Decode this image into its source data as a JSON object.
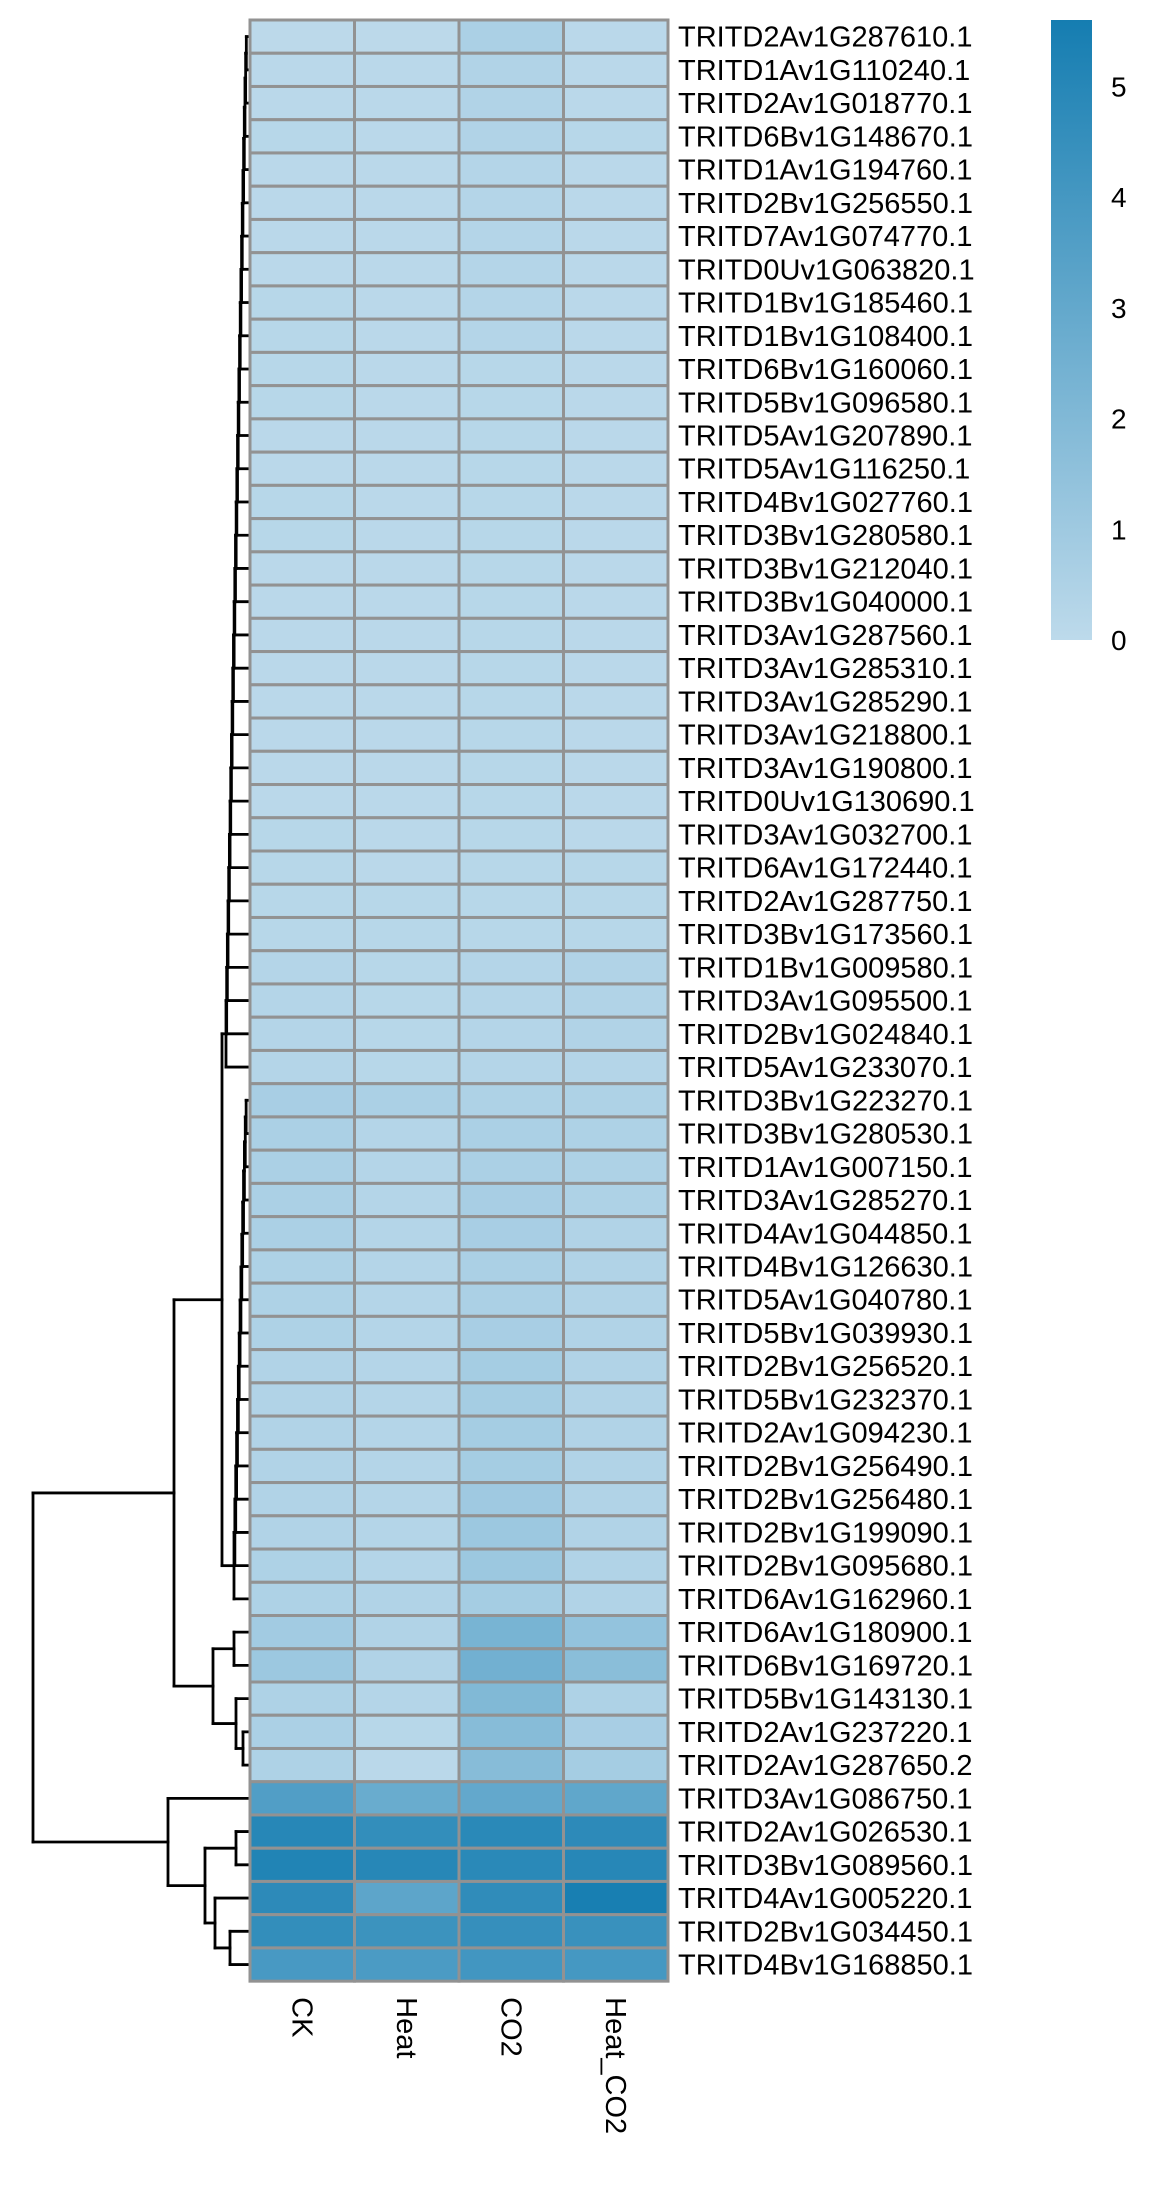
{
  "chart_data": {
    "type": "heatmap",
    "title": "",
    "columns": [
      "CK",
      "Heat",
      "CO2",
      "Heat_CO2"
    ],
    "rows": [
      "TRITD2Av1G287610.1",
      "TRITD1Av1G110240.1",
      "TRITD2Av1G018770.1",
      "TRITD6Bv1G148670.1",
      "TRITD1Av1G194760.1",
      "TRITD2Bv1G256550.1",
      "TRITD7Av1G074770.1",
      "TRITD0Uv1G063820.1",
      "TRITD1Bv1G185460.1",
      "TRITD1Bv1G108400.1",
      "TRITD6Bv1G160060.1",
      "TRITD5Bv1G096580.1",
      "TRITD5Av1G207890.1",
      "TRITD5Av1G116250.1",
      "TRITD4Bv1G027760.1",
      "TRITD3Bv1G280580.1",
      "TRITD3Bv1G212040.1",
      "TRITD3Bv1G040000.1",
      "TRITD3Av1G287560.1",
      "TRITD3Av1G285310.1",
      "TRITD3Av1G285290.1",
      "TRITD3Av1G218800.1",
      "TRITD3Av1G190800.1",
      "TRITD0Uv1G130690.1",
      "TRITD3Av1G032700.1",
      "TRITD6Av1G172440.1",
      "TRITD2Av1G287750.1",
      "TRITD3Bv1G173560.1",
      "TRITD1Bv1G009580.1",
      "TRITD3Av1G095500.1",
      "TRITD2Bv1G024840.1",
      "TRITD5Av1G233070.1",
      "TRITD3Bv1G223270.1",
      "TRITD3Bv1G280530.1",
      "TRITD1Av1G007150.1",
      "TRITD3Av1G285270.1",
      "TRITD4Av1G044850.1",
      "TRITD4Bv1G126630.1",
      "TRITD5Av1G040780.1",
      "TRITD5Bv1G039930.1",
      "TRITD2Bv1G256520.1",
      "TRITD5Bv1G232370.1",
      "TRITD2Av1G094230.1",
      "TRITD2Bv1G256490.1",
      "TRITD2Bv1G256480.1",
      "TRITD2Bv1G199090.1",
      "TRITD2Bv1G095680.1",
      "TRITD6Av1G162960.1",
      "TRITD6Av1G180900.1",
      "TRITD6Bv1G169720.1",
      "TRITD5Bv1G143130.1",
      "TRITD2Av1G237220.1",
      "TRITD2Av1G287650.2",
      "TRITD3Av1G086750.1",
      "TRITD2Av1G026530.1",
      "TRITD3Bv1G089560.1",
      "TRITD4Av1G005220.1",
      "TRITD2Bv1G034450.1",
      "TRITD4Bv1G168850.1"
    ],
    "values": [
      [
        0.05,
        0.05,
        0.6,
        0.1
      ],
      [
        0.1,
        0.1,
        0.4,
        0.1
      ],
      [
        0.1,
        0.1,
        0.4,
        0.1
      ],
      [
        0.2,
        0.1,
        0.4,
        0.2
      ],
      [
        0.1,
        0.1,
        0.3,
        0.1
      ],
      [
        0.1,
        0.1,
        0.3,
        0.1
      ],
      [
        0.1,
        0.1,
        0.3,
        0.1
      ],
      [
        0.1,
        0.1,
        0.3,
        0.1
      ],
      [
        0.2,
        0.1,
        0.3,
        0.1
      ],
      [
        0.2,
        0.1,
        0.3,
        0.1
      ],
      [
        0.2,
        0.1,
        0.2,
        0.1
      ],
      [
        0.2,
        0.1,
        0.2,
        0.1
      ],
      [
        0.1,
        0.1,
        0.2,
        0.1
      ],
      [
        0.1,
        0.1,
        0.2,
        0.1
      ],
      [
        0.2,
        0.1,
        0.2,
        0.1
      ],
      [
        0.2,
        0.1,
        0.2,
        0.1
      ],
      [
        0.1,
        0.1,
        0.2,
        0.1
      ],
      [
        0.1,
        0.1,
        0.2,
        0.1
      ],
      [
        0.1,
        0.1,
        0.2,
        0.1
      ],
      [
        0.1,
        0.1,
        0.2,
        0.1
      ],
      [
        0.1,
        0.1,
        0.2,
        0.1
      ],
      [
        0.1,
        0.1,
        0.2,
        0.1
      ],
      [
        0.1,
        0.1,
        0.2,
        0.1
      ],
      [
        0.1,
        0.1,
        0.2,
        0.1
      ],
      [
        0.2,
        0.1,
        0.2,
        0.1
      ],
      [
        0.2,
        0.1,
        0.2,
        0.2
      ],
      [
        0.2,
        0.2,
        0.2,
        0.2
      ],
      [
        0.2,
        0.2,
        0.2,
        0.2
      ],
      [
        0.3,
        0.2,
        0.3,
        0.4
      ],
      [
        0.3,
        0.2,
        0.3,
        0.4
      ],
      [
        0.3,
        0.2,
        0.3,
        0.4
      ],
      [
        0.3,
        0.2,
        0.3,
        0.3
      ],
      [
        0.7,
        0.6,
        0.5,
        0.5
      ],
      [
        0.6,
        0.3,
        0.6,
        0.5
      ],
      [
        0.6,
        0.3,
        0.6,
        0.5
      ],
      [
        0.6,
        0.3,
        0.7,
        0.5
      ],
      [
        0.6,
        0.3,
        0.7,
        0.4
      ],
      [
        0.5,
        0.3,
        0.6,
        0.4
      ],
      [
        0.5,
        0.3,
        0.6,
        0.4
      ],
      [
        0.5,
        0.3,
        0.7,
        0.4
      ],
      [
        0.4,
        0.3,
        0.8,
        0.4
      ],
      [
        0.4,
        0.3,
        0.8,
        0.4
      ],
      [
        0.4,
        0.3,
        0.8,
        0.4
      ],
      [
        0.4,
        0.3,
        0.8,
        0.4
      ],
      [
        0.4,
        0.3,
        1.0,
        0.4
      ],
      [
        0.4,
        0.3,
        1.1,
        0.4
      ],
      [
        0.5,
        0.3,
        1.1,
        0.4
      ],
      [
        0.5,
        0.4,
        0.8,
        0.4
      ],
      [
        0.9,
        0.4,
        2.3,
        1.4
      ],
      [
        1.1,
        0.4,
        2.5,
        1.7
      ],
      [
        0.5,
        0.3,
        2.0,
        0.5
      ],
      [
        0.6,
        0.2,
        1.8,
        0.7
      ],
      [
        0.5,
        0.1,
        1.8,
        0.8
      ],
      [
        3.6,
        2.8,
        3.0,
        3.1
      ],
      [
        5.0,
        4.6,
        4.9,
        4.8
      ],
      [
        5.2,
        5.0,
        4.9,
        5.0
      ],
      [
        4.8,
        3.2,
        4.7,
        5.5
      ],
      [
        4.6,
        4.3,
        4.5,
        4.4
      ],
      [
        3.9,
        3.8,
        4.1,
        4.0
      ]
    ],
    "colorbar": {
      "ticks": [
        "0",
        "1",
        "2",
        "3",
        "4",
        "5"
      ],
      "range": [
        0,
        5.6
      ],
      "low_color": "#BDDAEB",
      "high_color": "#157DB1"
    },
    "row_dendrogram": true
  }
}
